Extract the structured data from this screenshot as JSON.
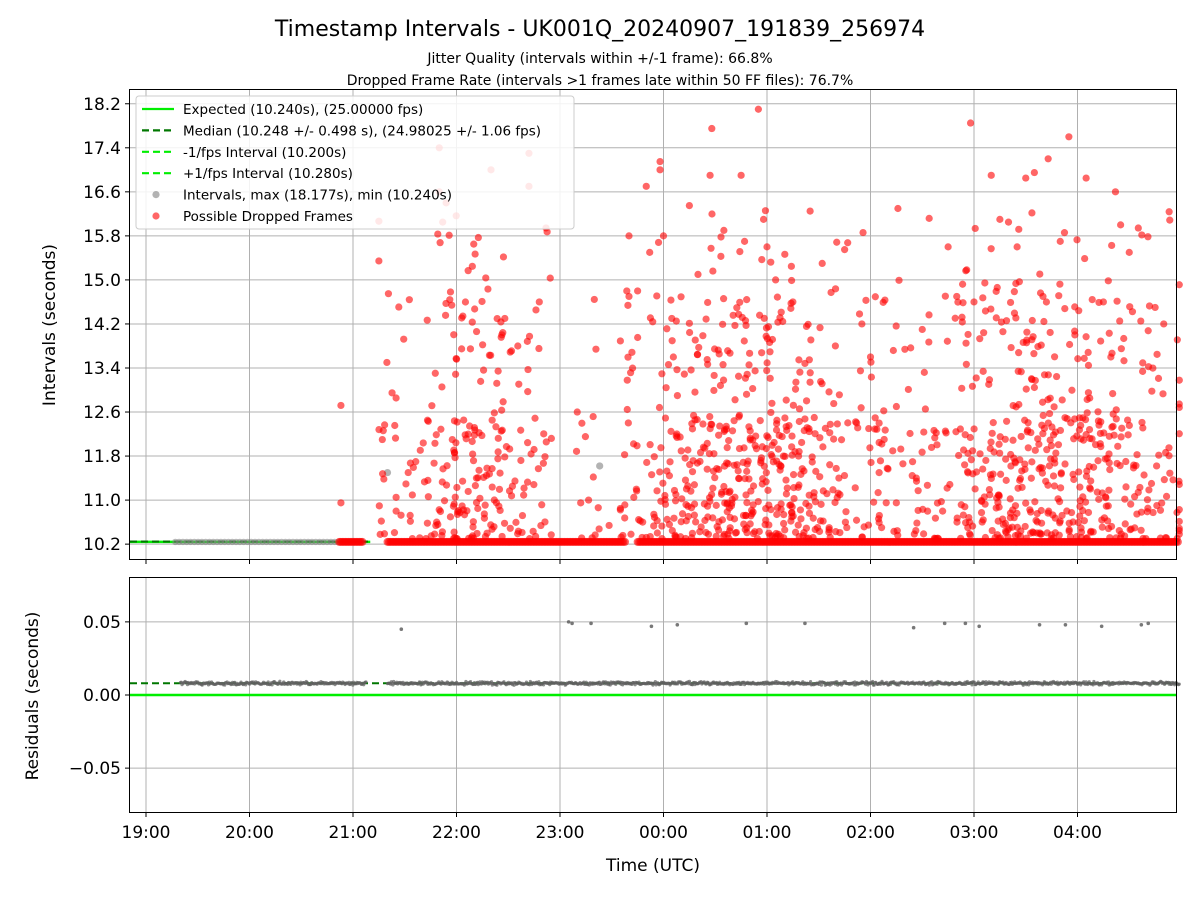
{
  "title": "Timestamp Intervals - UK001Q_20240907_191839_256974",
  "subtitle_line1": "Jitter Quality (intervals within +/-1 frame): 66.8%",
  "subtitle_line2": "Dropped Frame Rate (intervals >1 frames late within 50 FF files): 76.7%",
  "colors": {
    "expected": "#00ee00",
    "median": "#007700",
    "fps_band": "#00ee00",
    "intervals": "#808080",
    "dropped": "#ff0000",
    "grid": "#b0b0b0",
    "residuals": "#606060"
  },
  "chart_data": [
    {
      "type": "scatter",
      "name": "intervals",
      "xlabel": "",
      "ylabel": "Intervals (seconds)",
      "x_range": [
        "18:52",
        "04:59"
      ],
      "ylim": [
        9.93,
        18.45
      ],
      "yticks": [
        "10.2",
        "11.0",
        "11.8",
        "12.6",
        "13.4",
        "14.2",
        "15.0",
        "15.8",
        "16.6",
        "17.4",
        "18.2"
      ],
      "ytick_values": [
        10.2,
        11.0,
        11.8,
        12.6,
        13.4,
        14.2,
        15.0,
        15.8,
        16.6,
        17.4,
        18.2
      ],
      "grid": true,
      "legend_position": "top-left",
      "legend": [
        {
          "label": "Expected (10.240s), (25.00000 fps)",
          "style": "solid-line",
          "color": "#00ee00"
        },
        {
          "label": "Median (10.248 +/- 0.498 s), (24.98025 +/- 1.06 fps)",
          "style": "dashed-line",
          "color": "#007700"
        },
        {
          "label": "-1/fps Interval (10.200s)",
          "style": "dashed-line",
          "color": "#00ee00"
        },
        {
          "label": "+1/fps Interval (10.280s)",
          "style": "dashed-line",
          "color": "#00ee00"
        },
        {
          "label": "Intervals, max (18.177s), min (10.240s)",
          "style": "marker",
          "color": "#808080"
        },
        {
          "label": "Possible Dropped Frames",
          "style": "marker",
          "color": "#ff0000"
        }
      ],
      "reference_lines": {
        "expected": 10.24,
        "median": 10.248,
        "minus_one": 10.2,
        "plus_one": 10.28
      },
      "series": [
        {
          "name": "Intervals, max (18.177s), min (10.240s)",
          "x_start": "19:17",
          "x_end": "21:05",
          "baseline": 10.24,
          "points": [
            [
              "21:20",
              11.5
            ],
            [
              "23:23",
              11.62
            ]
          ]
        },
        {
          "name": "Possible Dropped Frames",
          "baseline_segments": [
            [
              "20:52",
              "21:06"
            ],
            [
              "21:20",
              "23:38"
            ],
            [
              "23:45",
              "04:59"
            ]
          ],
          "clusters": [
            {
              "start": "21:15",
              "end": "22:55",
              "count": 240,
              "peak": "22:08"
            },
            {
              "start": "23:05",
              "end": "23:30",
              "count": 14,
              "peak": "23:18"
            },
            {
              "start": "23:35",
              "end": "02:05",
              "count": 520,
              "peak": "00:50"
            },
            {
              "start": "02:05",
              "end": "04:59",
              "count": 540,
              "peak": "03:45"
            }
          ],
          "points": [
            [
              "20:53",
              12.72
            ],
            [
              "20:53",
              10.95
            ],
            [
              "21:17",
              12.1
            ],
            [
              "21:25",
              11.05
            ],
            [
              "21:32",
              11.5
            ],
            [
              "21:50",
              17.4
            ],
            [
              "21:50",
              16.6
            ],
            [
              "21:52",
              16.05
            ],
            [
              "21:54",
              16.4
            ],
            [
              "22:10",
              15.65
            ],
            [
              "22:20",
              17.0
            ],
            [
              "22:42",
              17.3
            ],
            [
              "22:42",
              16.7
            ],
            [
              "22:48",
              14.6
            ],
            [
              "22:28",
              14.3
            ],
            [
              "23:10",
              12.6
            ],
            [
              "23:12",
              10.95
            ],
            [
              "23:40",
              15.8
            ],
            [
              "23:40",
              14.7
            ],
            [
              "23:45",
              14.8
            ],
            [
              "23:50",
              16.7
            ],
            [
              "23:52",
              15.5
            ],
            [
              "23:58",
              17.15
            ],
            [
              "23:58",
              17.0
            ],
            [
              "00:00",
              15.8
            ],
            [
              "00:15",
              16.35
            ],
            [
              "00:20",
              15.1
            ],
            [
              "00:27",
              16.9
            ],
            [
              "00:28",
              17.75
            ],
            [
              "00:35",
              15.9
            ],
            [
              "00:45",
              16.9
            ],
            [
              "00:47",
              15.7
            ],
            [
              "00:55",
              18.1
            ],
            [
              "00:58",
              16.1
            ],
            [
              "01:00",
              15.6
            ],
            [
              "01:05",
              15.0
            ],
            [
              "01:15",
              14.6
            ],
            [
              "01:25",
              16.25
            ],
            [
              "01:32",
              15.3
            ],
            [
              "01:45",
              15.55
            ],
            [
              "01:55",
              14.2
            ],
            [
              "02:00",
              13.6
            ],
            [
              "02:15",
              12.7
            ],
            [
              "02:30",
              14.1
            ],
            [
              "02:45",
              15.6
            ],
            [
              "02:50",
              14.7
            ],
            [
              "02:58",
              17.85
            ],
            [
              "03:00",
              14.6
            ],
            [
              "03:10",
              16.9
            ],
            [
              "03:15",
              16.1
            ],
            [
              "03:20",
              16.05
            ],
            [
              "03:25",
              15.6
            ],
            [
              "03:30",
              16.85
            ],
            [
              "03:35",
              16.95
            ],
            [
              "03:40",
              14.7
            ],
            [
              "03:43",
              17.2
            ],
            [
              "03:50",
              15.7
            ],
            [
              "03:55",
              17.6
            ],
            [
              "04:05",
              16.85
            ],
            [
              "04:15",
              14.6
            ],
            [
              "04:22",
              16.6
            ],
            [
              "04:25",
              16.0
            ],
            [
              "04:30",
              15.5
            ],
            [
              "04:45",
              14.5
            ],
            [
              "04:50",
              14.2
            ]
          ]
        }
      ]
    },
    {
      "type": "scatter",
      "name": "residuals",
      "xlabel": "Time (UTC)",
      "ylabel": "Residuals (seconds)",
      "x_range": [
        "18:52",
        "04:59"
      ],
      "ylim": [
        -0.08,
        0.08
      ],
      "yticks": [
        "0.05",
        "0.00",
        "−0.05"
      ],
      "ytick_values": [
        0.05,
        0.0,
        -0.05
      ],
      "xticks": [
        "19:00",
        "20:00",
        "21:00",
        "22:00",
        "23:00",
        "00:00",
        "01:00",
        "02:00",
        "03:00",
        "04:00"
      ],
      "grid": true,
      "reference_lines": {
        "zero": 0.0,
        "median": 0.008
      },
      "series": [
        {
          "name": "residuals",
          "band_center": 0.008,
          "band_spread": 0.0014,
          "segments": [
            [
              "19:20",
              "21:08"
            ],
            [
              "21:20",
              "04:59"
            ]
          ],
          "outliers": [
            [
              "21:28",
              0.045
            ],
            [
              "23:05",
              0.05
            ],
            [
              "23:07",
              0.049
            ],
            [
              "23:18",
              0.049
            ],
            [
              "23:53",
              0.047
            ],
            [
              "00:08",
              0.048
            ],
            [
              "00:48",
              0.049
            ],
            [
              "01:22",
              0.049
            ],
            [
              "02:25",
              0.046
            ],
            [
              "02:43",
              0.049
            ],
            [
              "02:55",
              0.049
            ],
            [
              "03:03",
              0.047
            ],
            [
              "03:38",
              0.048
            ],
            [
              "03:53",
              0.048
            ],
            [
              "04:14",
              0.047
            ],
            [
              "04:37",
              0.048
            ],
            [
              "04:41",
              0.049
            ]
          ]
        }
      ]
    }
  ]
}
